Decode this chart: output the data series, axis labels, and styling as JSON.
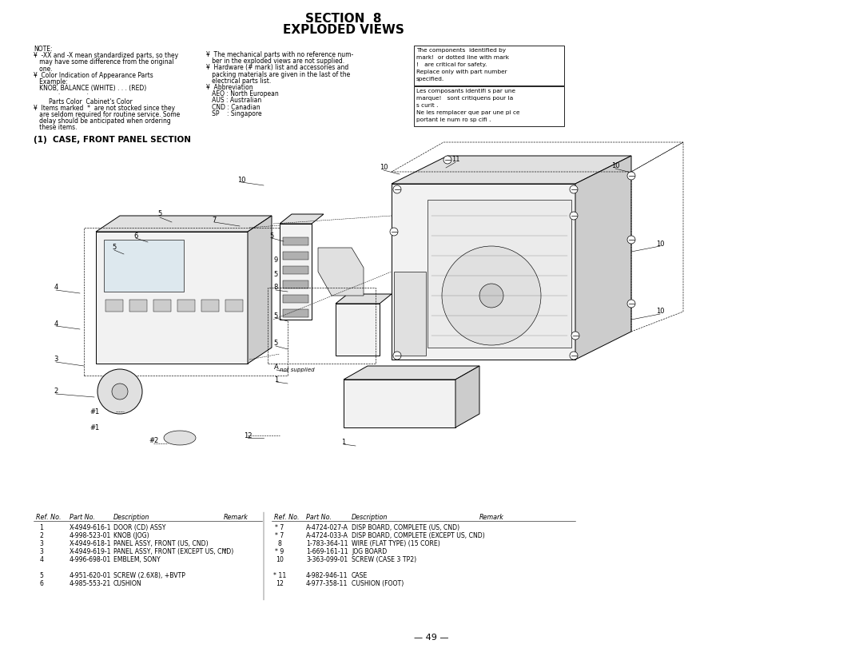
{
  "title_line1": "SECTION  8",
  "title_line2": "EXPLODED VIEWS",
  "section_label": "(1)  CASE, FRONT PANEL SECTION",
  "page_number": "— 49 —",
  "note_col1": [
    "NOTE:",
    "¥  -XX and -X mean standardized parts, so they",
    "   may have some difference from the original",
    "   one.",
    "¥  Color Indication of Appearance Parts",
    "   Example:",
    "   KNOB, BALANCE (WHITE) . . . (RED)",
    "             ·              ·",
    "        Parts Color  Cabinet's Color",
    "¥  Items marked  *  are not stocked since they",
    "   are seldom required for routine service. Some",
    "   delay should be anticipated when ordering",
    "   these items."
  ],
  "note_col2": [
    "¥  The mechanical parts with no reference num-",
    "   ber in the exploded views are not supplied.",
    "¥  Hardware (# mark) list and accessories and",
    "   packing materials are given in the last of the",
    "   electrical parts list.",
    "¥  Abbreviation",
    "   AEO : North European",
    "   AUS : Australian",
    "   CND : Canadian",
    "   SP    : Singapore"
  ],
  "note_col3_box1": [
    "The components  identified by",
    "mark!  or dotted line with mark",
    "!   are critical for safety.",
    "Replace only with part number",
    "specified."
  ],
  "note_col3_box2": [
    "Les composants identifi s par une",
    "marque!   sont critiquens pour la",
    "s curit .",
    "Ne les remplacer que par une pi ce",
    "portant le num ro sp cifi ."
  ],
  "bg_color": "#ffffff",
  "font_size_title": 11,
  "font_size_note": 5.5,
  "font_size_section": 7.5,
  "font_size_table_h": 5.8,
  "font_size_table": 5.6,
  "parts_left": [
    [
      "1",
      "X-4949-616-1",
      "DOOR (CD) ASSY",
      ""
    ],
    [
      "2",
      "4-998-523-01",
      "KNOB (JOG)",
      ""
    ],
    [
      "3",
      "X-4949-618-1",
      "PANEL ASSY, FRONT (US, CND)",
      ""
    ],
    [
      "3",
      "X-4949-619-1",
      "PANEL ASSY, FRONT (EXCEPT US, CND)",
      "*"
    ],
    [
      "4",
      "4-996-698-01",
      "EMBLEM, SONY",
      ""
    ],
    [
      "",
      "",
      "",
      ""
    ],
    [
      "5",
      "4-951-620-01",
      "SCREW (2.6X8), +BVTP",
      ""
    ],
    [
      "6",
      "4-985-553-21",
      "CUSHION",
      ""
    ]
  ],
  "parts_right": [
    [
      "* 7",
      "A-4724-027-A",
      "DISP BOARD, COMPLETE (US, CND)",
      ""
    ],
    [
      "* 7",
      "A-4724-033-A",
      "DISP BOARD, COMPLETE (EXCEPT US, CND)",
      ""
    ],
    [
      "8",
      "1-783-364-11",
      "WIRE (FLAT TYPE) (15 CORE)",
      ""
    ],
    [
      "* 9",
      "1-669-161-11",
      "JOG BOARD",
      ""
    ],
    [
      "10",
      "3-363-099-01",
      "SCREW (CASE 3 TP2)",
      ""
    ],
    [
      "",
      "",
      "",
      ""
    ],
    [
      "* 11",
      "4-982-946-11",
      "CASE",
      ""
    ],
    [
      "12",
      "4-977-358-11",
      "CUSHION (FOOT)",
      ""
    ]
  ]
}
